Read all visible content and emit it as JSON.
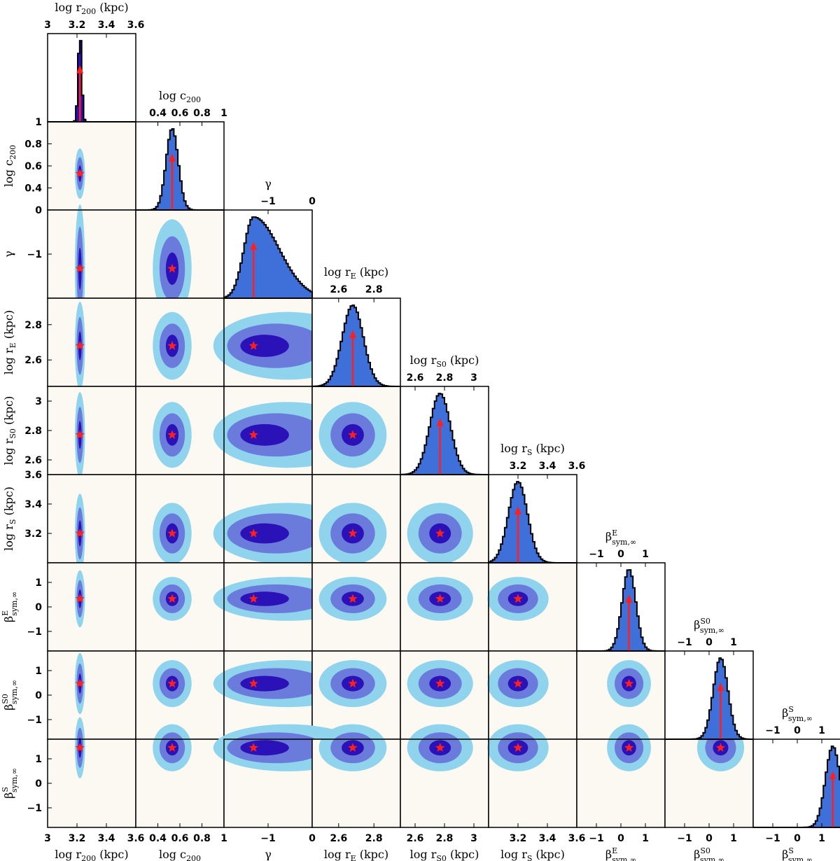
{
  "chart_data": {
    "type": "corner_plot",
    "description_note": "Triangular posterior plot: 1D marginal histograms on the diagonal, 2D credible-region contours below, best-fit marked by red star / red arrow.",
    "parameters": [
      {
        "key": "log_r200",
        "label": "log r₂₀₀ (kpc)",
        "range": [
          3.0,
          3.6
        ],
        "ticks": [
          3,
          3.2,
          3.4,
          3.6
        ],
        "tick_labels": [
          "3",
          "3.2",
          "3.4",
          "3.6"
        ],
        "best": 3.22,
        "hist_sigma": 0.012
      },
      {
        "key": "log_c200",
        "label": "log c₂₀₀",
        "range": [
          0.2,
          1.0
        ],
        "ticks": [
          0.4,
          0.6,
          0.8,
          1.0
        ],
        "tick_labels": [
          "0.4",
          "0.6",
          "0.8",
          "1"
        ],
        "best": 0.53,
        "hist_sigma": 0.055
      },
      {
        "key": "gamma",
        "label": "γ",
        "range": [
          -2.0,
          0.0
        ],
        "ticks": [
          -1,
          0
        ],
        "tick_labels": [
          "−1",
          "0"
        ],
        "best": -1.33,
        "hist_sigma": 0.35
      },
      {
        "key": "log_rE",
        "label": "log r_E (kpc)",
        "range": [
          2.45,
          2.95
        ],
        "ticks": [
          2.6,
          2.8
        ],
        "tick_labels": [
          "2.6",
          "2.8"
        ],
        "best": 2.68,
        "hist_sigma": 0.06
      },
      {
        "key": "log_rS0",
        "label": "log r_S0 (kpc)",
        "range": [
          2.5,
          3.1
        ],
        "ticks": [
          2.6,
          2.8,
          3.0
        ],
        "tick_labels": [
          "2.6",
          "2.8",
          "3"
        ],
        "best": 2.77,
        "hist_sigma": 0.07
      },
      {
        "key": "log_rS",
        "label": "log r_S (kpc)",
        "range": [
          3.0,
          3.6
        ],
        "ticks": [
          3.2,
          3.4,
          3.6
        ],
        "tick_labels": [
          "3.2",
          "3.4",
          "3.6"
        ],
        "best": 3.2,
        "hist_sigma": 0.065
      },
      {
        "key": "beta_E",
        "label": "β^E sym,∞",
        "range": [
          -1.8,
          1.8
        ],
        "ticks": [
          -1,
          0,
          1
        ],
        "tick_labels": [
          "−1",
          "0",
          "1"
        ],
        "best": 0.33,
        "hist_sigma": 0.28
      },
      {
        "key": "beta_S0",
        "label": "β^S0 sym,∞",
        "range": [
          -1.8,
          1.8
        ],
        "ticks": [
          -1,
          0,
          1
        ],
        "tick_labels": [
          "−1",
          "0",
          "1"
        ],
        "best": 0.47,
        "hist_sigma": 0.3
      },
      {
        "key": "beta_S",
        "label": "β^S sym,∞",
        "range": [
          -1.8,
          1.8
        ],
        "ticks": [
          -1,
          0,
          1
        ],
        "tick_labels": [
          "−1",
          "0",
          "1"
        ],
        "best": 1.45,
        "hist_sigma": 0.3
      }
    ],
    "colors": {
      "region_3sigma": "#8fd3ec",
      "region_2sigma": "#6b7bdc",
      "region_1sigma": "#2a12b8",
      "histogram_fill": "#3f6fd8",
      "best_fit_marker": "#ff1f1f",
      "panel_background": "#fbf9f2"
    }
  }
}
